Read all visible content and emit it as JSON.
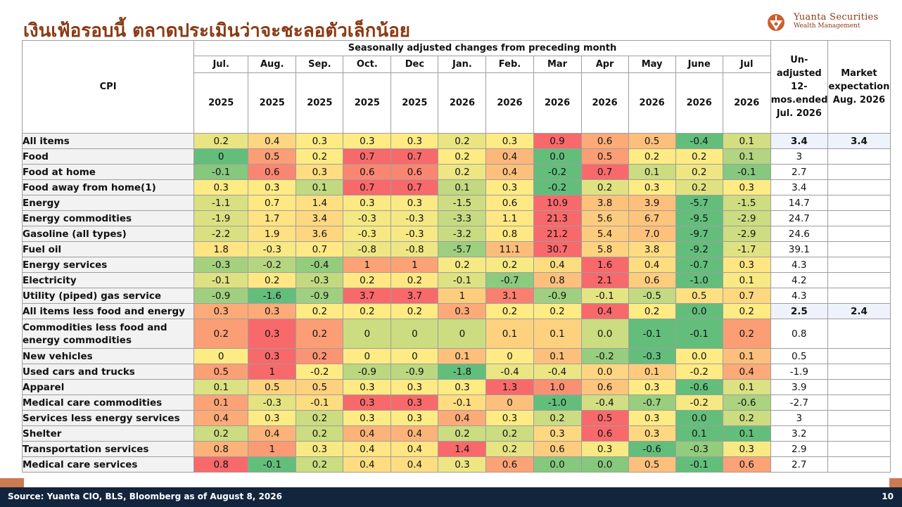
{
  "title": "เงินเฟ้อรอบนี้ ตลาดประเมินว่าจะชะลอตัวเล็กน้อย",
  "logo": {
    "name": "Yuanta Securities",
    "sub": "Wealth Management"
  },
  "table": {
    "cpi_label": "CPI",
    "group_header": "Seasonally adjusted changes from preceding month",
    "months": [
      "Jul.",
      "Aug.",
      "Sep.",
      "Oct.",
      "Dec",
      "Jan.",
      "Feb.",
      "Mar",
      "Apr",
      "May",
      "June",
      "Jul"
    ],
    "years": [
      "2025",
      "2025",
      "2025",
      "2025",
      "2025",
      "2026",
      "2026",
      "2026",
      "2026",
      "2026",
      "2026",
      "2026"
    ],
    "unadjusted_header": "Un-adjusted 12-mos.ended Jul. 2026",
    "market_header": "Market expectation Aug. 2026",
    "rows": [
      {
        "label": "All items",
        "values": [
          "0.2",
          "0.4",
          "0.3",
          "0.3",
          "0.3",
          "0.2",
          "0.3",
          "0.9",
          "0.6",
          "0.5",
          "-0.4",
          "0.1"
        ],
        "unadjusted": "3.4",
        "market": "3.4"
      },
      {
        "label": "Food",
        "values": [
          "0",
          "0.5",
          "0.2",
          "0.7",
          "0.7",
          "0.2",
          "0.4",
          "0.0",
          "0.5",
          "0.2",
          "0.2",
          "0.1"
        ],
        "unadjusted": "3",
        "market": ""
      },
      {
        "label": "Food at home",
        "values": [
          "-0.1",
          "0.6",
          "0.3",
          "0.6",
          "0.6",
          "0.2",
          "0.4",
          "-0.2",
          "0.7",
          "0.1",
          "0.2",
          "-0.1"
        ],
        "unadjusted": "2.7",
        "market": ""
      },
      {
        "label": "Food away from home(1)",
        "values": [
          "0.3",
          "0.3",
          "0.1",
          "0.7",
          "0.7",
          "0.1",
          "0.3",
          "-0.2",
          "0.2",
          "0.3",
          "0.2",
          "0.3"
        ],
        "unadjusted": "3.4",
        "market": ""
      },
      {
        "label": "Energy",
        "values": [
          "-1.1",
          "0.7",
          "1.4",
          "0.3",
          "0.3",
          "-1.5",
          "0.6",
          "10.9",
          "3.8",
          "3.9",
          "-5.7",
          "-1.5"
        ],
        "unadjusted": "14.7",
        "market": ""
      },
      {
        "label": "Energy commodities",
        "values": [
          "-1.9",
          "1.7",
          "3.4",
          "-0.3",
          "-0.3",
          "-3.3",
          "1.1",
          "21.3",
          "5.6",
          "6.7",
          "-9.5",
          "-2.9"
        ],
        "unadjusted": "24.7",
        "market": ""
      },
      {
        "label": "Gasoline (all types)",
        "values": [
          "-2.2",
          "1.9",
          "3.6",
          "-0.3",
          "-0.3",
          "-3.2",
          "0.8",
          "21.2",
          "5.4",
          "7.0",
          "-9.7",
          "-2.9"
        ],
        "unadjusted": "24.6",
        "market": ""
      },
      {
        "label": "Fuel oil",
        "values": [
          "1.8",
          "-0.3",
          "0.7",
          "-0.8",
          "-0.8",
          "-5.7",
          "11.1",
          "30.7",
          "5.8",
          "3.8",
          "-9.2",
          "-1.7"
        ],
        "unadjusted": "39.1",
        "market": ""
      },
      {
        "label": "Energy services",
        "values": [
          "-0.3",
          "-0.2",
          "-0.4",
          "1",
          "1",
          "0.2",
          "0.2",
          "0.4",
          "1.6",
          "0.4",
          "-0.7",
          "0.3"
        ],
        "unadjusted": "4.3",
        "market": ""
      },
      {
        "label": "Electricity",
        "values": [
          "-0.1",
          "0.2",
          "-0.3",
          "0.2",
          "0.2",
          "-0.1",
          "-0.7",
          "0.8",
          "2.1",
          "0.6",
          "-1.0",
          "0.1"
        ],
        "unadjusted": "4.2",
        "market": ""
      },
      {
        "label": "Utility (piped) gas service",
        "values": [
          "-0.9",
          "-1.6",
          "-0.9",
          "3.7",
          "3.7",
          "1",
          "3.1",
          "-0.9",
          "-0.1",
          "-0.5",
          "0.5",
          "0.7"
        ],
        "unadjusted": "4.3",
        "market": ""
      },
      {
        "label": "All items less food and energy",
        "values": [
          "0.3",
          "0.3",
          "0.2",
          "0.2",
          "0.2",
          "0.3",
          "0.2",
          "0.2",
          "0.4",
          "0.2",
          "0.0",
          "0.2"
        ],
        "unadjusted": "2.5",
        "market": "2.4"
      },
      {
        "label": "Commodities less food and energy commodities",
        "values": [
          "0.2",
          "0.3",
          "0.2",
          "0",
          "0",
          "0",
          "0.1",
          "0.1",
          "0.0",
          "-0.1",
          "-0.1",
          "0.2"
        ],
        "unadjusted": "0.8",
        "market": ""
      },
      {
        "label": "New vehicles",
        "values": [
          "0",
          "0.3",
          "0.2",
          "0",
          "0",
          "0.1",
          "0",
          "0.1",
          "-0.2",
          "-0.3",
          "0.0",
          "0.1"
        ],
        "unadjusted": "0.5",
        "market": ""
      },
      {
        "label": "Used cars and trucks",
        "values": [
          "0.5",
          "1",
          "-0.2",
          "-0.9",
          "-0.9",
          "-1.8",
          "-0.4",
          "-0.4",
          "0.0",
          "0.1",
          "-0.2",
          "0.4"
        ],
        "unadjusted": "-1.9",
        "market": ""
      },
      {
        "label": "Apparel",
        "values": [
          "0.1",
          "0.5",
          "0.5",
          "0.3",
          "0.3",
          "0.3",
          "1.3",
          "1.0",
          "0.6",
          "0.3",
          "-0.6",
          "0.1"
        ],
        "unadjusted": "3.9",
        "market": ""
      },
      {
        "label": "Medical care commodities",
        "values": [
          "0.1",
          "-0.3",
          "-0.1",
          "0.3",
          "0.3",
          "-0.1",
          "0",
          "-1.0",
          "-0.4",
          "-0.7",
          "-0.2",
          "-0.6"
        ],
        "unadjusted": "-2.7",
        "market": ""
      },
      {
        "label": "Services less energy services",
        "values": [
          "0.4",
          "0.3",
          "0.2",
          "0.3",
          "0.3",
          "0.4",
          "0.3",
          "0.2",
          "0.5",
          "0.3",
          "0.0",
          "0.2"
        ],
        "unadjusted": "3",
        "market": ""
      },
      {
        "label": "Shelter",
        "values": [
          "0.2",
          "0.4",
          "0.2",
          "0.4",
          "0.4",
          "0.2",
          "0.2",
          "0.3",
          "0.6",
          "0.3",
          "0.1",
          "0.1"
        ],
        "unadjusted": "3.2",
        "market": ""
      },
      {
        "label": "Transportation services",
        "values": [
          "0.8",
          "1",
          "0.3",
          "0.4",
          "0.4",
          "1.4",
          "0.2",
          "0.6",
          "0.3",
          "-0.6",
          "-0.3",
          "0.3"
        ],
        "unadjusted": "2.9",
        "market": ""
      },
      {
        "label": "Medical care services",
        "values": [
          "0.8",
          "-0.1",
          "0.2",
          "0.4",
          "0.4",
          "0.3",
          "0.6",
          "0.0",
          "0.0",
          "0.5",
          "-0.1",
          "0.6"
        ],
        "unadjusted": "2.7",
        "market": ""
      }
    ],
    "heat_colors": {
      "low": "#63be7b",
      "mid": "#ffeb84",
      "high": "#f8696b"
    }
  },
  "footer": {
    "source": "Source: Yuanta CIO, BLS, Bloomberg as of August 8, 2026",
    "page": "10"
  }
}
